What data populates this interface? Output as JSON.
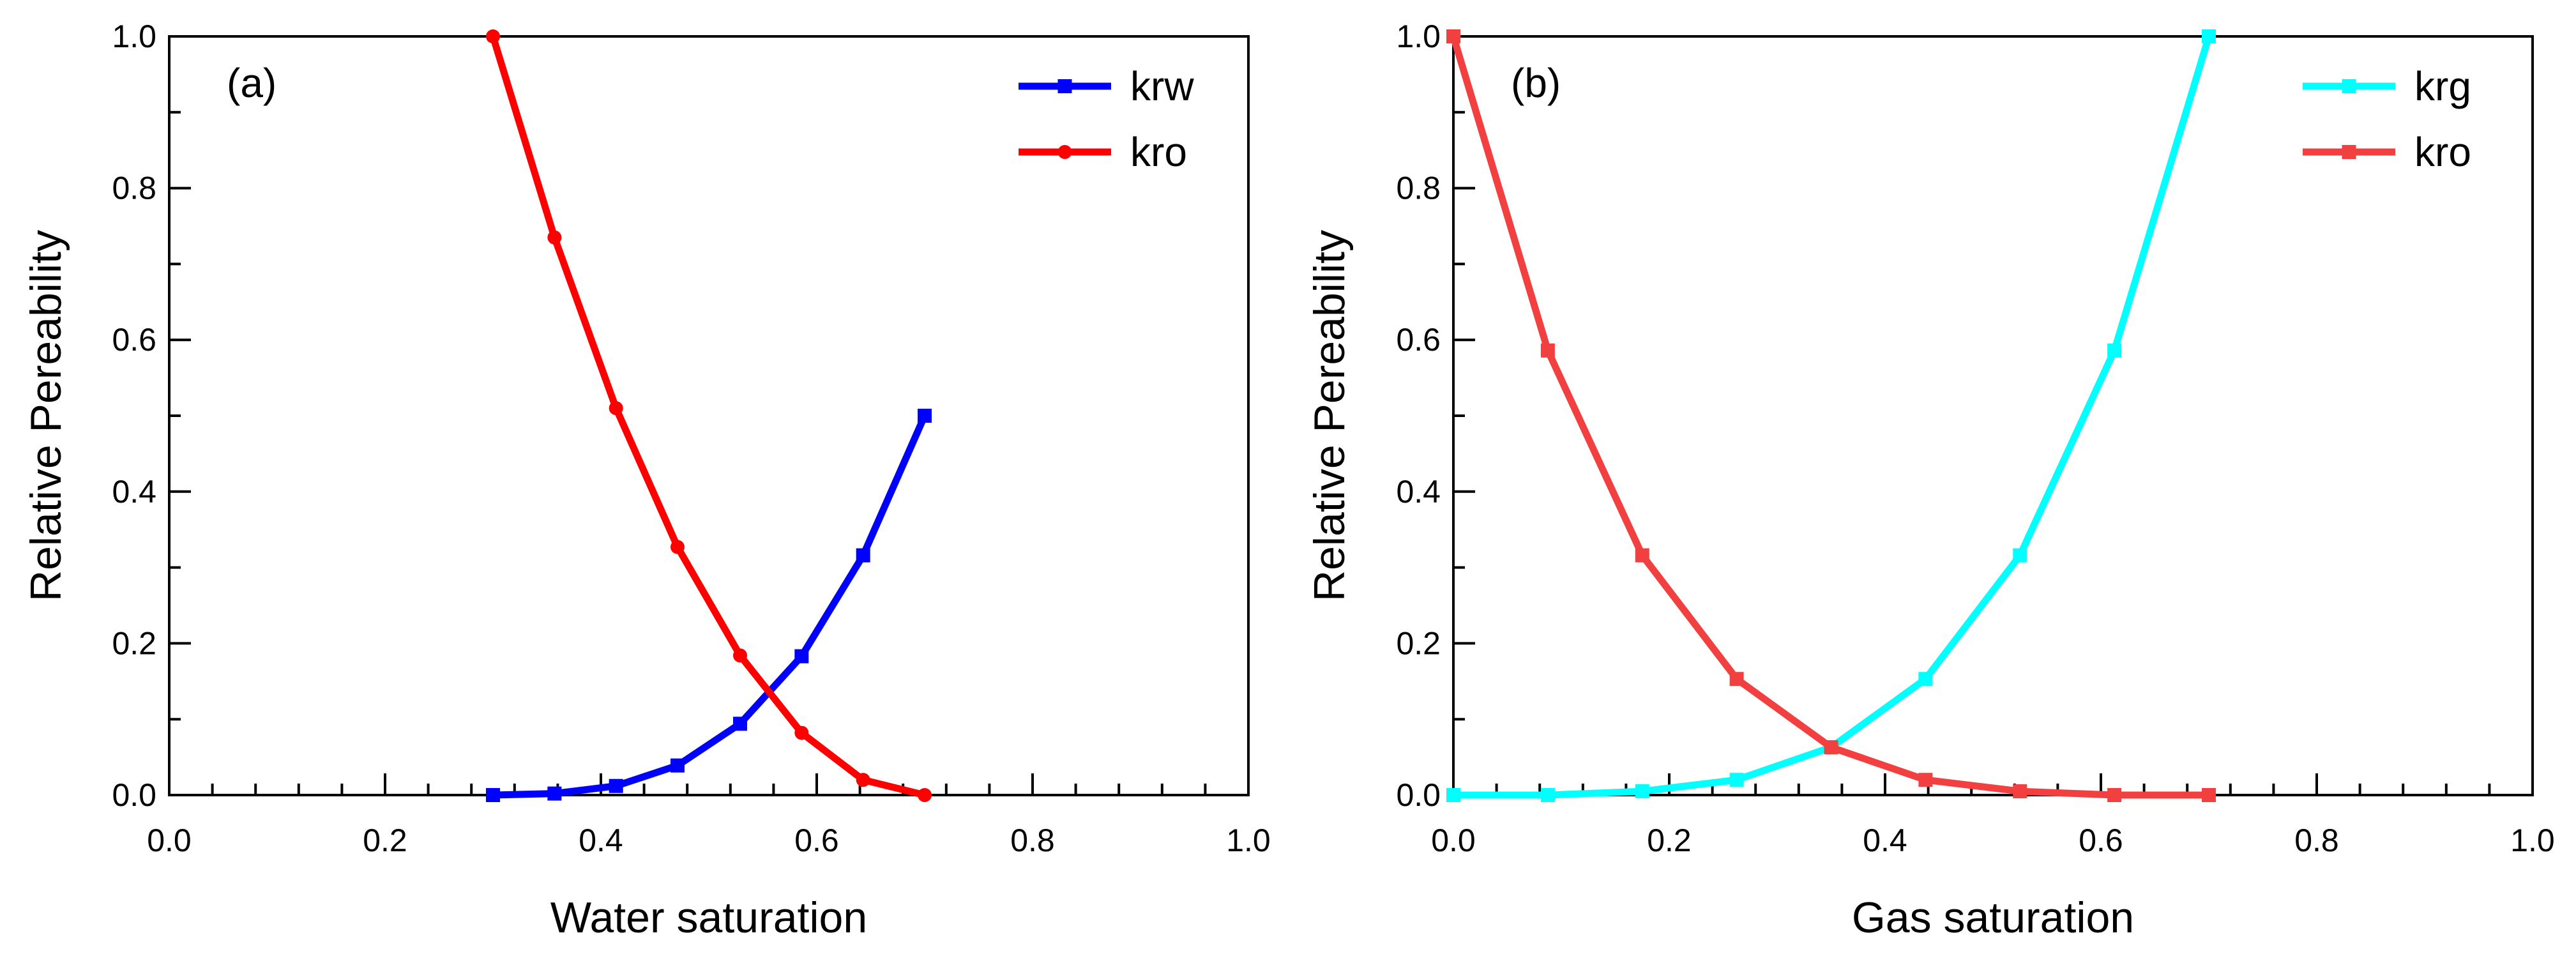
{
  "chart_data": [
    {
      "type": "line",
      "panel_label": "(a)",
      "xlabel": "Water saturation",
      "ylabel": "Relative Pereability",
      "xlim": [
        0.0,
        1.0
      ],
      "ylim": [
        0.0,
        1.0
      ],
      "xticks": [
        "0.0",
        "0.2",
        "0.4",
        "0.6",
        "0.8",
        "1.0"
      ],
      "yticks": [
        "0.0",
        "0.2",
        "0.4",
        "0.6",
        "0.8",
        "1.0"
      ],
      "grid": false,
      "legend_position": "top-right",
      "series": [
        {
          "name": "krw",
          "color": "#0000ff",
          "marker": "square",
          "x": [
            0.3,
            0.357,
            0.414,
            0.471,
            0.529,
            0.586,
            0.643,
            0.7
          ],
          "y": [
            0.0,
            0.002,
            0.012,
            0.039,
            0.094,
            0.183,
            0.316,
            0.5
          ]
        },
        {
          "name": "kro",
          "color": "#ff0000",
          "marker": "circle",
          "x": [
            0.3,
            0.357,
            0.414,
            0.471,
            0.529,
            0.586,
            0.643,
            0.7
          ],
          "y": [
            1.0,
            0.735,
            0.51,
            0.327,
            0.184,
            0.082,
            0.02,
            0.0
          ]
        }
      ]
    },
    {
      "type": "line",
      "panel_label": "(b)",
      "xlabel": "Gas saturation",
      "ylabel": "Relative Pereability",
      "xlim": [
        0.0,
        1.0
      ],
      "ylim": [
        0.0,
        1.0
      ],
      "xticks": [
        "0.0",
        "0.2",
        "0.4",
        "0.6",
        "0.8",
        "1.0"
      ],
      "yticks": [
        "0.0",
        "0.2",
        "0.4",
        "0.6",
        "0.8",
        "1.0"
      ],
      "grid": false,
      "legend_position": "top-right",
      "series": [
        {
          "name": "krg",
          "color": "#00ffff",
          "marker": "square",
          "x": [
            0.0,
            0.0875,
            0.175,
            0.2625,
            0.35,
            0.4375,
            0.525,
            0.6125,
            0.7
          ],
          "y": [
            0.0,
            0.0,
            0.005,
            0.02,
            0.063,
            0.153,
            0.316,
            0.586,
            1.0
          ]
        },
        {
          "name": "kro",
          "color": "#f24040",
          "marker": "square",
          "x": [
            0.0,
            0.0875,
            0.175,
            0.2625,
            0.35,
            0.4375,
            0.525,
            0.6125,
            0.7
          ],
          "y": [
            1.0,
            0.586,
            0.316,
            0.153,
            0.063,
            0.02,
            0.005,
            0.0,
            0.0
          ]
        }
      ]
    }
  ]
}
